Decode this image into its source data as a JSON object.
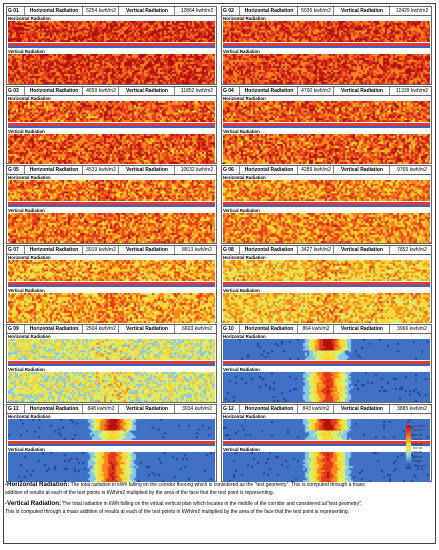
{
  "panels": [
    {
      "id": "G 01",
      "horizontal_label": "Horizontal Radiation",
      "horizontal_value": "5254 kwh/m2",
      "vertical_label": "Vertical Radiation",
      "vertical_value": "12864 kwh/m2",
      "strip_h": "Horizontal Radiation",
      "strip_v": "Vertical Radiation",
      "intensity": 0.95
    },
    {
      "id": "G 02",
      "horizontal_label": "Horizontal Radiation",
      "horizontal_value": "5036 kwh/m2",
      "vertical_label": "Vertical Radiation",
      "vertical_value": "12429 kwh/m2",
      "strip_h": "Horizontal Radiation",
      "strip_v": "Vertical Radiation",
      "intensity": 0.92
    },
    {
      "id": "G 03",
      "horizontal_label": "Horizontal Radiation",
      "horizontal_value": "4659 kwh/m2",
      "vertical_label": "Vertical Radiation",
      "vertical_value": "11852 kwh/m2",
      "strip_h": "Horizontal Radiation",
      "strip_v": "Vertical Radiation",
      "intensity": 0.88
    },
    {
      "id": "G 04",
      "horizontal_label": "Horizontal Radiation",
      "horizontal_value": "4700 kwh/m2",
      "vertical_label": "Vertical Radiation",
      "vertical_value": "11339 kwh/m2",
      "strip_h": "Horizontal Radiation",
      "strip_v": "Vertical Radiation",
      "intensity": 0.86
    },
    {
      "id": "G 05",
      "horizontal_label": "Horizontal Radiation",
      "horizontal_value": "4533 kwh/m2",
      "vertical_label": "Vertical Radiation",
      "vertical_value": "10632 kwh/m2",
      "strip_h": "Horizontal Radiation",
      "strip_v": "Vertical Radiation",
      "intensity": 0.82
    },
    {
      "id": "G 06",
      "horizontal_label": "Horizontal Radiation",
      "horizontal_value": "4289 kwh/m2",
      "vertical_label": "Vertical Radiation",
      "vertical_value": "9765 kwh/m2",
      "strip_h": "Horizontal Radiation",
      "strip_v": "Vertical Radiation",
      "intensity": 0.78
    },
    {
      "id": "G 07",
      "horizontal_label": "Horizontal Radiation",
      "horizontal_value": "3919 kwh/m2",
      "vertical_label": "Vertical Radiation",
      "vertical_value": "8813 kwh/m2",
      "strip_h": "Horizontal Radiation",
      "strip_v": "Vertical Radiation",
      "intensity": 0.72
    },
    {
      "id": "G 08",
      "horizontal_label": "Horizontal Radiation",
      "horizontal_value": "3427 kwh/m2",
      "vertical_label": "Vertical Radiation",
      "vertical_value": "7852 kwh/m2",
      "strip_h": "Horizontal Radiation",
      "strip_v": "Vertical Radiation",
      "intensity": 0.66
    },
    {
      "id": "G 09",
      "horizontal_label": "Horizontal Radiation",
      "horizontal_value": "2504 kwh/m2",
      "vertical_label": "Vertical Radiation",
      "vertical_value": "6603 kwh/m2",
      "strip_h": "Horizontal Radiation",
      "strip_v": "Vertical Radiation",
      "intensity": 0.5
    },
    {
      "id": "G 10",
      "horizontal_label": "Horizontal Radiation",
      "horizontal_value": "864 kwh/m2",
      "vertical_label": "Vertical Radiation",
      "vertical_value": "3966 kwh/m2",
      "strip_h": "Horizontal Radiation",
      "strip_v": "Vertical Radiation",
      "intensity": 0.2
    },
    {
      "id": "G 11",
      "horizontal_label": "Horizontal Radiation",
      "horizontal_value": "848 kwh/m2",
      "vertical_label": "Vertical Radiation",
      "vertical_value": "3934 kwh/m2",
      "strip_h": "Horizontal Radiation",
      "strip_v": "Vertical Radiation",
      "intensity": 0.18
    },
    {
      "id": "G 12",
      "horizontal_label": "Horizontal Radiation",
      "horizontal_value": "843 kwh/m2",
      "vertical_label": "Vertical Radiation",
      "vertical_value": "3885 kwh/m2",
      "strip_h": "Horizontal Radiation",
      "strip_v": "Vertical Radiation",
      "intensity": 0.17
    }
  ],
  "legend": {
    "ticks": [
      "1000.00<=",
      "900.00",
      "800.00",
      "700.00",
      "600.00",
      "500.00",
      "400.00",
      "300.00",
      "200.00",
      "<=100.00"
    ]
  },
  "notes": {
    "horizontal_term": "-Horizontal Radiation:",
    "horizontal_text_1": " The total radiation in kWh falling on the corridor flooring which is considered as the \"test geometry\". This is computed through a mass",
    "horizontal_text_2": "addition of results at each of the test points in kWh/m2 multiplied by the area of the face that the test point is representing.",
    "vertical_term": "-Vertical Radiation:",
    "vertical_text_1": " The total radiation in kWh falling on the virtual vertical plan which locates in the middle of the corridor and considered as\"test geometry\".",
    "vertical_text_2": "This is computed through a mass addition of results at each of the test points in kWh/m2 multiplied by the area of the face that the test point is representing."
  },
  "colors": {
    "red": "#e23b2b",
    "blue": "#3a63c8",
    "yellow": "#fbd62c",
    "orange": "#f6861d"
  }
}
